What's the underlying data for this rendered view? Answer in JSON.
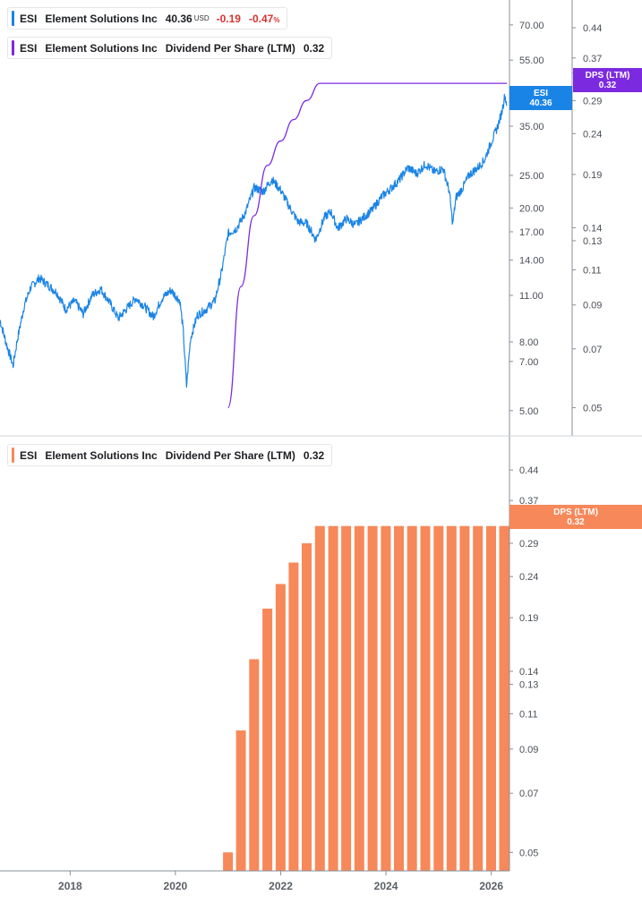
{
  "colors": {
    "price_line": "#1a84e6",
    "dps_line": "#7c2ae0",
    "dps_bar": "#f7885a",
    "axis": "#8a8f96",
    "divider": "#d0d3d8"
  },
  "top_legend": {
    "ticker": "ESI",
    "name": "Element Solutions Inc",
    "price": "40.36",
    "currency": "USD",
    "change": "-0.19",
    "change_pct": "-0.47",
    "pct_sign": "%"
  },
  "dps_legend": {
    "ticker": "ESI",
    "name": "Element Solutions Inc",
    "metric": "Dividend Per Share (LTM)",
    "value": "0.32"
  },
  "bottom_legend": {
    "ticker": "ESI",
    "name": "Element Solutions Inc",
    "metric": "Dividend Per Share (LTM)",
    "value": "0.32"
  },
  "tags": {
    "price_ticker": "ESI",
    "price_value": "40.36",
    "dps_label": "DPS (LTM)",
    "dps_value": "0.32",
    "bottom_dps_label": "DPS (LTM)",
    "bottom_dps_value": "0.32"
  },
  "chart_data": [
    {
      "type": "line",
      "x_range": [
        "2016-09",
        "2026-05"
      ],
      "y_scale": "log",
      "ylim_price": [
        4.5,
        80
      ],
      "ylim_dps": [
        0.045,
        0.5
      ],
      "price_ticks": [
        "70.00",
        "55.00",
        "45.00",
        "35.00",
        "25.00",
        "20.00",
        "17.00",
        "14.00",
        "11.00",
        "8.00",
        "7.00",
        "5.00"
      ],
      "dps_ticks": [
        "0.44",
        "0.37",
        "0.34",
        "0.29",
        "0.24",
        "0.19",
        "0.14",
        "0.13",
        "0.11",
        "0.09",
        "0.07",
        "0.05"
      ],
      "series": [
        {
          "name": "ESI",
          "points": [
            [
              "2016-09-01",
              9.3
            ],
            [
              "2016-10-15",
              7.9
            ],
            [
              "2016-12-01",
              6.8
            ],
            [
              "2017-01-01",
              8.2
            ],
            [
              "2017-02-15",
              10.2
            ],
            [
              "2017-04-01",
              11.6
            ],
            [
              "2017-06-01",
              12.4
            ],
            [
              "2017-08-01",
              11.8
            ],
            [
              "2017-10-01",
              11.2
            ],
            [
              "2017-12-01",
              10.0
            ],
            [
              "2018-02-01",
              10.6
            ],
            [
              "2018-04-01",
              9.7
            ],
            [
              "2018-06-01",
              11.0
            ],
            [
              "2018-08-01",
              11.5
            ],
            [
              "2018-10-01",
              10.5
            ],
            [
              "2018-12-01",
              9.4
            ],
            [
              "2019-02-01",
              10.1
            ],
            [
              "2019-04-01",
              10.8
            ],
            [
              "2019-06-01",
              10.2
            ],
            [
              "2019-08-01",
              9.5
            ],
            [
              "2019-10-01",
              10.8
            ],
            [
              "2019-12-01",
              11.4
            ],
            [
              "2020-02-01",
              10.6
            ],
            [
              "2020-02-25",
              8.6
            ],
            [
              "2020-03-18",
              5.9
            ],
            [
              "2020-04-15",
              8.2
            ],
            [
              "2020-06-01",
              9.6
            ],
            [
              "2020-08-01",
              10.0
            ],
            [
              "2020-10-01",
              10.6
            ],
            [
              "2020-11-15",
              12.8
            ],
            [
              "2021-01-01",
              16.8
            ],
            [
              "2021-03-01",
              17.4
            ],
            [
              "2021-05-01",
              19.4
            ],
            [
              "2021-07-01",
              23.0
            ],
            [
              "2021-09-01",
              22.4
            ],
            [
              "2021-11-01",
              24.3
            ],
            [
              "2022-01-01",
              22.6
            ],
            [
              "2022-03-01",
              20.2
            ],
            [
              "2022-05-01",
              18.2
            ],
            [
              "2022-07-01",
              18.0
            ],
            [
              "2022-09-01",
              16.1
            ],
            [
              "2022-11-01",
              18.8
            ],
            [
              "2022-12-15",
              19.5
            ],
            [
              "2023-02-01",
              17.4
            ],
            [
              "2023-04-01",
              18.6
            ],
            [
              "2023-06-01",
              17.8
            ],
            [
              "2023-08-01",
              18.8
            ],
            [
              "2023-10-01",
              19.8
            ],
            [
              "2023-12-01",
              21.6
            ],
            [
              "2024-02-01",
              22.8
            ],
            [
              "2024-04-01",
              24.2
            ],
            [
              "2024-06-01",
              26.4
            ],
            [
              "2024-08-01",
              25.3
            ],
            [
              "2024-10-01",
              27.0
            ],
            [
              "2024-12-01",
              25.6
            ],
            [
              "2025-02-01",
              26.2
            ],
            [
              "2025-03-15",
              22.5
            ],
            [
              "2025-04-08",
              17.9
            ],
            [
              "2025-05-01",
              21.5
            ],
            [
              "2025-06-15",
              22.9
            ],
            [
              "2025-08-01",
              25.1
            ],
            [
              "2025-10-01",
              26.4
            ],
            [
              "2025-11-15",
              27.8
            ],
            [
              "2026-01-01",
              31.4
            ],
            [
              "2026-02-15",
              35.0
            ],
            [
              "2026-03-15",
              38.6
            ],
            [
              "2026-04-05",
              43.2
            ],
            [
              "2026-04-20",
              40.36
            ]
          ]
        },
        {
          "name": "Dividend Per Share (LTM)",
          "axis": "dps",
          "points": [
            [
              "2020-12-31",
              0.05
            ],
            [
              "2021-03-31",
              0.1
            ],
            [
              "2021-06-30",
              0.15
            ],
            [
              "2021-09-30",
              0.2
            ],
            [
              "2021-12-31",
              0.23
            ],
            [
              "2022-03-31",
              0.26
            ],
            [
              "2022-06-30",
              0.29
            ],
            [
              "2022-09-30",
              0.32
            ],
            [
              "2026-04-20",
              0.32
            ]
          ]
        }
      ]
    },
    {
      "type": "bar",
      "y_scale": "log",
      "ylim": [
        0.045,
        0.5
      ],
      "ticks": [
        "0.44",
        "0.37",
        "0.34",
        "0.29",
        "0.24",
        "0.19",
        "0.14",
        "0.13",
        "0.11",
        "0.09",
        "0.07",
        "0.05"
      ],
      "x_tick_labels": [
        "2018",
        "2020",
        "2022",
        "2024",
        "2026"
      ],
      "categories": [
        "2020-12-31",
        "2021-03-31",
        "2021-06-30",
        "2021-09-30",
        "2021-12-31",
        "2022-03-31",
        "2022-06-30",
        "2022-09-30",
        "2022-12-31",
        "2023-03-31",
        "2023-06-30",
        "2023-09-30",
        "2023-12-31",
        "2024-03-31",
        "2024-06-30",
        "2024-09-30",
        "2024-12-31",
        "2025-03-31",
        "2025-06-30",
        "2025-09-30",
        "2025-12-31",
        "2026-03-31"
      ],
      "values": [
        0.05,
        0.1,
        0.15,
        0.2,
        0.23,
        0.26,
        0.29,
        0.32,
        0.32,
        0.32,
        0.32,
        0.32,
        0.32,
        0.32,
        0.32,
        0.32,
        0.32,
        0.32,
        0.32,
        0.32,
        0.32,
        0.32
      ]
    }
  ]
}
